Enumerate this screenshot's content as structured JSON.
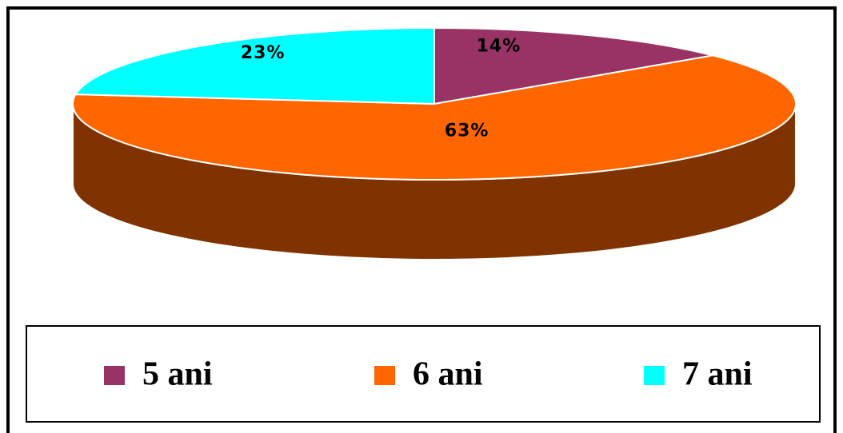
{
  "chart_data": {
    "type": "pie",
    "categories": [
      "5 ani",
      "6 ani",
      "7 ani"
    ],
    "values": [
      14,
      63,
      23
    ],
    "value_labels": [
      "14%",
      "63%",
      "23%"
    ],
    "colors": [
      "#993366",
      "#ff6600",
      "#00ffff"
    ],
    "legend": "bottom"
  }
}
